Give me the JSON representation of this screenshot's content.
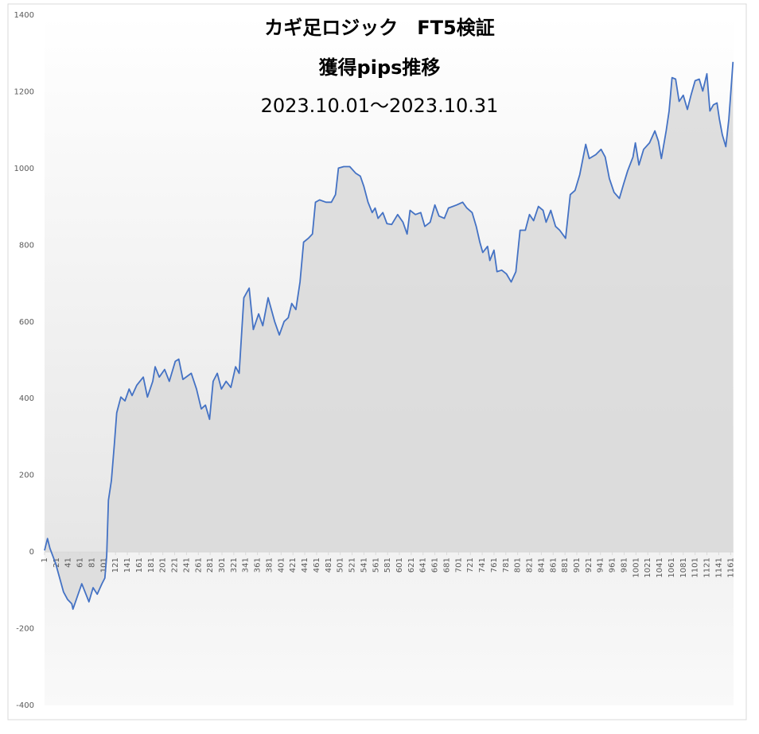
{
  "chart_data": {
    "type": "area",
    "title": [
      "カギ足ロジック　FT5検証",
      "獲得pips推移",
      "2023.10.01～2023.10.31"
    ],
    "x": [
      1,
      6,
      10,
      20,
      33,
      40,
      47,
      49,
      56,
      64,
      71,
      76,
      83,
      90,
      98,
      103,
      106,
      109,
      114,
      119,
      123,
      130,
      137,
      144,
      149,
      157,
      168,
      175,
      184,
      188,
      195,
      204,
      212,
      222,
      228,
      235,
      249,
      258,
      266,
      273,
      280,
      286,
      293,
      300,
      308,
      316,
      324,
      330,
      335,
      338,
      347,
      354,
      363,
      370,
      379,
      390,
      398,
      406,
      413,
      419,
      426,
      433,
      439,
      447,
      454,
      459,
      466,
      477,
      486,
      493,
      498,
      507,
      517,
      527,
      535,
      541,
      548,
      555,
      560,
      565,
      573,
      580,
      588,
      598,
      607,
      614,
      619,
      628,
      637,
      644,
      653,
      661,
      668,
      677,
      684,
      698,
      708,
      715,
      724,
      731,
      737,
      742,
      750,
      754,
      761,
      766,
      774,
      782,
      790,
      798,
      805,
      814,
      821,
      828,
      836,
      844,
      849,
      857,
      865,
      872,
      882,
      890,
      898,
      906,
      916,
      922,
      933,
      942,
      949,
      956,
      964,
      973,
      980,
      987,
      996,
      1000,
      1006,
      1014,
      1024,
      1033,
      1039,
      1044,
      1052,
      1057,
      1062,
      1068,
      1074,
      1081,
      1088,
      1094,
      1101,
      1108,
      1114,
      1121,
      1126,
      1132,
      1138,
      1142,
      1147,
      1153,
      1158,
      1161,
      1165
    ],
    "series": [
      {
        "color": "#4472c4",
        "values": [
          4,
          35,
          10,
          -31,
          -104,
          -124,
          -135,
          -149,
          -118,
          -83,
          -110,
          -130,
          -93,
          -110,
          -83,
          -68,
          -10,
          135,
          186,
          280,
          363,
          404,
          394,
          425,
          408,
          435,
          456,
          404,
          445,
          483,
          456,
          476,
          445,
          497,
          503,
          450,
          466,
          425,
          373,
          383,
          346,
          445,
          466,
          425,
          445,
          429,
          483,
          466,
          590,
          663,
          688,
          580,
          621,
          590,
          663,
          601,
          566,
          601,
          611,
          648,
          632,
          704,
          808,
          818,
          829,
          912,
          918,
          912,
          912,
          932,
          1001,
          1005,
          1005,
          988,
          980,
          953,
          912,
          885,
          897,
          870,
          885,
          856,
          854,
          880,
          860,
          829,
          891,
          880,
          885,
          849,
          860,
          905,
          876,
          870,
          897,
          905,
          912,
          897,
          885,
          849,
          808,
          781,
          797,
          760,
          787,
          731,
          735,
          725,
          704,
          731,
          839,
          839,
          880,
          864,
          901,
          891,
          860,
          891,
          849,
          839,
          818,
          932,
          943,
          984,
          1063,
          1026,
          1036,
          1050,
          1030,
          974,
          938,
          922,
          959,
          994,
          1030,
          1067,
          1009,
          1050,
          1067,
          1098,
          1071,
          1026,
          1098,
          1150,
          1237,
          1233,
          1175,
          1191,
          1154,
          1191,
          1229,
          1233,
          1202,
          1247,
          1150,
          1166,
          1171,
          1129,
          1088,
          1057,
          1129,
          1191,
          1278
        ]
      }
    ],
    "xlim": [
      1,
      1166
    ],
    "xticks": [
      1,
      21,
      41,
      61,
      81,
      101,
      121,
      141,
      161,
      181,
      201,
      221,
      241,
      261,
      281,
      301,
      321,
      341,
      361,
      381,
      401,
      421,
      441,
      461,
      481,
      501,
      521,
      541,
      561,
      581,
      601,
      621,
      641,
      661,
      681,
      701,
      721,
      741,
      761,
      781,
      801,
      821,
      841,
      861,
      881,
      901,
      921,
      941,
      961,
      981,
      1001,
      1021,
      1041,
      1061,
      1081,
      1101,
      1121,
      1141,
      1161
    ],
    "ylim": [
      -400,
      1400
    ],
    "yticks": [
      -400,
      -200,
      0,
      200,
      400,
      600,
      800,
      1000,
      1200,
      1400
    ]
  }
}
